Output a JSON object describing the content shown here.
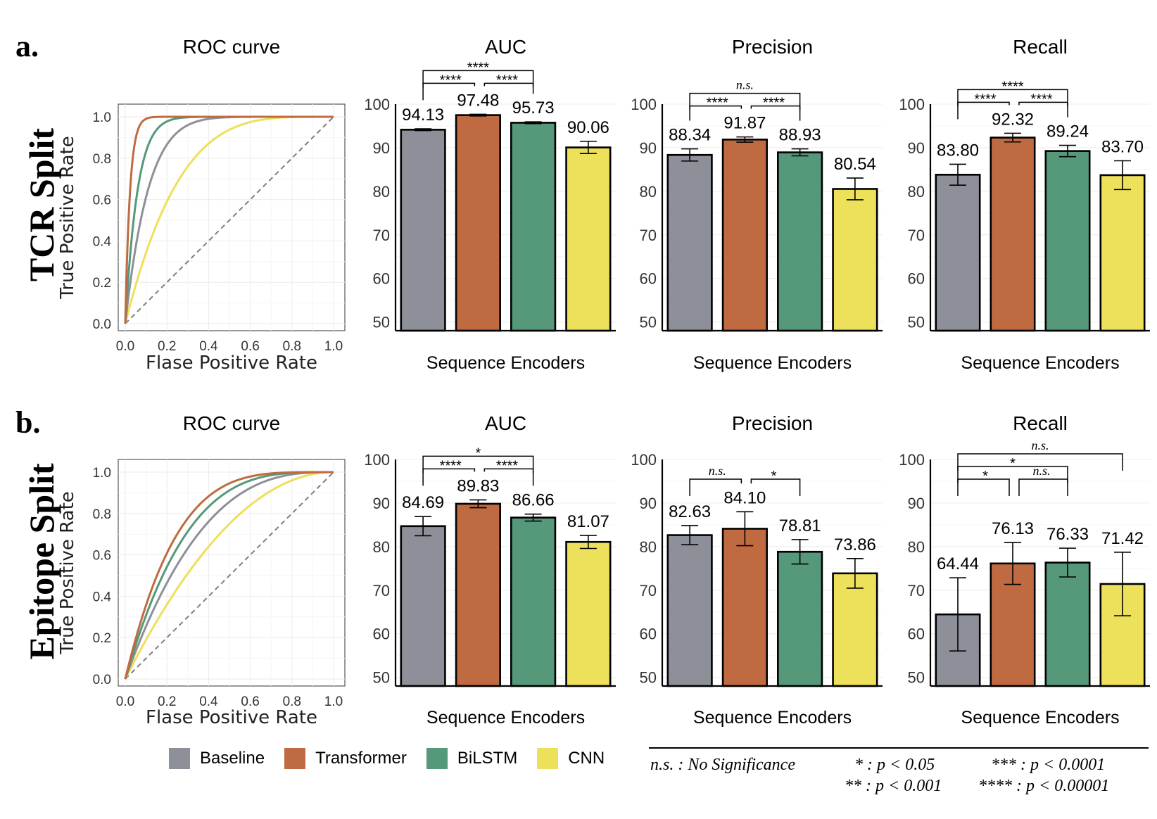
{
  "colors": {
    "Baseline": "#8d9098",
    "Transformer": "#bf6a40",
    "BiLSTM": "#55987a",
    "CNN": "#ede05a"
  },
  "rows": [
    {
      "letter": "a.",
      "name": "TCR Split"
    },
    {
      "letter": "b.",
      "name": "Epitope Split"
    }
  ],
  "legend": [
    {
      "name": "Baseline",
      "color": "#8d9098"
    },
    {
      "name": "Transformer",
      "color": "#bf6a40"
    },
    {
      "name": "BiLSTM",
      "color": "#55987a"
    },
    {
      "name": "CNN",
      "color": "#ede05a"
    }
  ],
  "significance_key": [
    "n.s. : No Significance",
    "* : p < 0.05",
    "*** : p < 0.0001",
    "** : p < 0.001",
    "**** : p < 0.00001"
  ],
  "chart_data": [
    {
      "type": "line",
      "panel": "a-roc",
      "title": "ROC curve",
      "xlabel": "Flase Positive Rate",
      "ylabel": "True Positive Rate",
      "xlim": [
        0,
        1
      ],
      "ylim": [
        0,
        1
      ],
      "ticks": [
        "0.0",
        "0.2",
        "0.4",
        "0.6",
        "0.8",
        "1.0"
      ],
      "series": [
        {
          "name": "Baseline",
          "k": 9
        },
        {
          "name": "Transformer",
          "k": 44
        },
        {
          "name": "BiLSTM",
          "k": 17
        },
        {
          "name": "CNN",
          "k": 4
        }
      ]
    },
    {
      "type": "bar",
      "panel": "a-auc",
      "title": "AUC",
      "xlabel": "Sequence Encoders",
      "ylim": [
        48,
        100
      ],
      "yticks": [
        50,
        60,
        70,
        80,
        90,
        100
      ],
      "categories": [
        "Baseline",
        "Transformer",
        "BiLSTM",
        "CNN"
      ],
      "values": [
        94.13,
        97.48,
        95.73,
        90.06
      ],
      "errors": [
        0.2,
        0.2,
        0.2,
        1.4
      ],
      "labels": [
        "94.13",
        "97.48",
        "95.73",
        "90.06"
      ],
      "brackets": [
        {
          "from": 0,
          "to": 1,
          "text": "****",
          "level": 0
        },
        {
          "from": 1,
          "to": 2,
          "text": "****",
          "level": 0
        },
        {
          "from": 0,
          "to": 2,
          "text": "****",
          "level": 1
        }
      ]
    },
    {
      "type": "bar",
      "panel": "a-precision",
      "title": "Precision",
      "xlabel": "Sequence Encoders",
      "ylim": [
        48,
        100
      ],
      "yticks": [
        50,
        60,
        70,
        80,
        90,
        100
      ],
      "categories": [
        "Baseline",
        "Transformer",
        "BiLSTM",
        "CNN"
      ],
      "values": [
        88.34,
        91.87,
        88.93,
        80.54
      ],
      "errors": [
        1.4,
        0.6,
        0.8,
        2.5
      ],
      "labels": [
        "88.34",
        "91.87",
        "88.93",
        "80.54"
      ],
      "brackets": [
        {
          "from": 0,
          "to": 1,
          "text": "****",
          "level": 0
        },
        {
          "from": 1,
          "to": 2,
          "text": "****",
          "level": 0
        },
        {
          "from": 0,
          "to": 2,
          "text": "n.s.",
          "level": 1
        }
      ]
    },
    {
      "type": "bar",
      "panel": "a-recall",
      "title": "Recall",
      "xlabel": "Sequence Encoders",
      "ylim": [
        48,
        100
      ],
      "yticks": [
        50,
        60,
        70,
        80,
        90,
        100
      ],
      "categories": [
        "Baseline",
        "Transformer",
        "BiLSTM",
        "CNN"
      ],
      "values": [
        83.8,
        92.32,
        89.24,
        83.7
      ],
      "errors": [
        2.4,
        1.0,
        1.3,
        3.3
      ],
      "labels": [
        "83.80",
        "92.32",
        "89.24",
        "83.70"
      ],
      "brackets": [
        {
          "from": 0,
          "to": 1,
          "text": "****",
          "level": 0
        },
        {
          "from": 1,
          "to": 2,
          "text": "****",
          "level": 0
        },
        {
          "from": 0,
          "to": 2,
          "text": "****",
          "level": 1
        }
      ]
    },
    {
      "type": "line",
      "panel": "b-roc",
      "title": "ROC curve",
      "xlabel": "Flase Positive Rate",
      "ylabel": "True Positive Rate",
      "xlim": [
        0,
        1
      ],
      "ylim": [
        0,
        1
      ],
      "ticks": [
        "0.0",
        "0.2",
        "0.4",
        "0.6",
        "0.8",
        "1.0"
      ],
      "series": [
        {
          "name": "Baseline",
          "k": 2.8
        },
        {
          "name": "Transformer",
          "k": 4.2
        },
        {
          "name": "BiLSTM",
          "k": 3.5
        },
        {
          "name": "CNN",
          "k": 2.0
        }
      ]
    },
    {
      "type": "bar",
      "panel": "b-auc",
      "title": "AUC",
      "xlabel": "Sequence Encoders",
      "ylim": [
        48,
        100
      ],
      "yticks": [
        50,
        60,
        70,
        80,
        90,
        100
      ],
      "categories": [
        "Baseline",
        "Transformer",
        "BiLSTM",
        "CNN"
      ],
      "values": [
        84.69,
        89.83,
        86.66,
        81.07
      ],
      "errors": [
        2.2,
        0.9,
        0.8,
        1.5
      ],
      "labels": [
        "84.69",
        "89.83",
        "86.66",
        "81.07"
      ],
      "brackets": [
        {
          "from": 0,
          "to": 1,
          "text": "****",
          "level": 0
        },
        {
          "from": 1,
          "to": 2,
          "text": "****",
          "level": 0
        },
        {
          "from": 0,
          "to": 2,
          "text": "*",
          "level": 1
        }
      ]
    },
    {
      "type": "bar",
      "panel": "b-precision",
      "title": "Precision",
      "xlabel": "Sequence Encoders",
      "ylim": [
        48,
        100
      ],
      "yticks": [
        50,
        60,
        70,
        80,
        90,
        100
      ],
      "categories": [
        "Baseline",
        "Transformer",
        "BiLSTM",
        "CNN"
      ],
      "values": [
        82.63,
        84.1,
        78.81,
        73.86
      ],
      "errors": [
        2.2,
        3.9,
        2.8,
        3.4
      ],
      "labels": [
        "82.63",
        "84.10",
        "78.81",
        "73.86"
      ],
      "brackets": [
        {
          "from": 0,
          "to": 1,
          "text": "n.s.",
          "level": 0
        },
        {
          "from": 1,
          "to": 2,
          "text": "*",
          "level": 0
        }
      ]
    },
    {
      "type": "bar",
      "panel": "b-recall",
      "title": "Recall",
      "xlabel": "Sequence Encoders",
      "ylim": [
        48,
        100
      ],
      "yticks": [
        50,
        60,
        70,
        80,
        90,
        100
      ],
      "categories": [
        "Baseline",
        "Transformer",
        "BiLSTM",
        "CNN"
      ],
      "values": [
        64.44,
        76.13,
        76.33,
        71.42
      ],
      "errors": [
        8.4,
        4.8,
        3.3,
        7.3
      ],
      "labels": [
        "64.44",
        "76.13",
        "76.33",
        "71.42"
      ],
      "brackets": [
        {
          "from": 0,
          "to": 1,
          "text": "*",
          "level": 0
        },
        {
          "from": 1,
          "to": 2,
          "text": "n.s.",
          "level": 0
        },
        {
          "from": 0,
          "to": 2,
          "text": "*",
          "level": 1
        },
        {
          "from": 0,
          "to": 3,
          "text": "n.s.",
          "level": 2
        }
      ]
    }
  ]
}
